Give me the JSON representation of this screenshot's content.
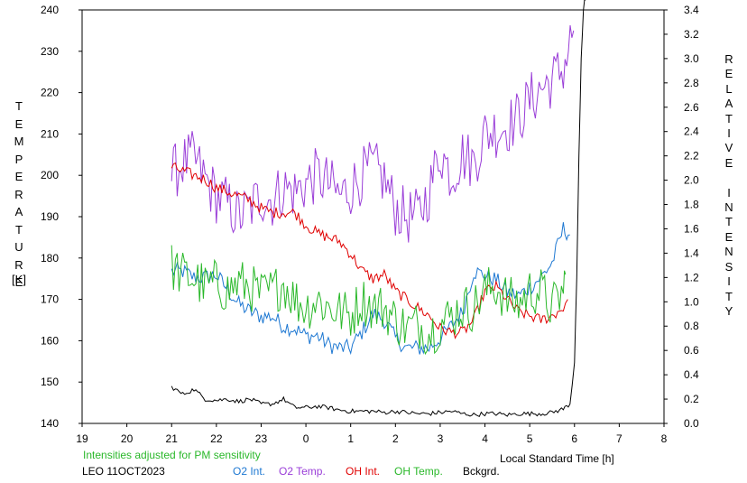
{
  "chart_data": {
    "type": "line",
    "left_axis_label_letters": [
      "T",
      "E",
      "M",
      "P",
      "E",
      "R",
      "A",
      "T",
      "U",
      "R",
      "E"
    ],
    "left_axis_unit": "[K]",
    "right_axis_label_letters": [
      "R",
      "E",
      "L",
      "A",
      "T",
      "I",
      "V",
      "E",
      " ",
      "I",
      "N",
      "T",
      "E",
      "N",
      "S",
      "I",
      "T",
      "Y"
    ],
    "xlabel": "Local Standard Time [h]",
    "x_ticks": [
      "19",
      "20",
      "21",
      "22",
      "23",
      "0",
      "1",
      "2",
      "3",
      "4",
      "5",
      "6",
      "7",
      "8"
    ],
    "xlim": [
      19,
      32
    ],
    "y_left_ticks": [
      "140",
      "150",
      "160",
      "170",
      "180",
      "190",
      "200",
      "210",
      "220",
      "230",
      "240"
    ],
    "ylim_left": [
      140,
      240
    ],
    "y_right_ticks": [
      "0.0",
      "0.2",
      "0.4",
      "0.6",
      "0.8",
      "1.0",
      "1.2",
      "1.4",
      "1.6",
      "1.8",
      "2.0",
      "2.2",
      "2.4",
      "2.6",
      "2.8",
      "3.0",
      "3.2",
      "3.4"
    ],
    "ylim_right": [
      0,
      3.4
    ],
    "grid": false,
    "note": "Intensities adjusted for PM sensitivity",
    "station_date": "LEO 11OCT2023",
    "legend_placement": "bottom",
    "series": [
      {
        "name": "O2 Int.",
        "color": "#1e78d2",
        "axis": "right",
        "x": [
          21.0,
          21.25,
          21.5,
          21.75,
          22.0,
          22.25,
          22.5,
          22.75,
          23.0,
          23.25,
          23.5,
          23.75,
          24.0,
          24.25,
          24.5,
          24.75,
          25.0,
          25.25,
          25.5,
          25.75,
          26.0,
          26.25,
          26.5,
          26.75,
          27.0,
          27.25,
          27.5,
          27.75,
          28.0,
          28.25,
          28.5,
          28.75,
          29.0,
          29.25,
          29.5,
          29.75,
          29.9
        ],
        "y": [
          1.25,
          1.25,
          1.2,
          1.2,
          1.22,
          1.1,
          0.98,
          0.92,
          0.88,
          0.88,
          0.8,
          0.78,
          0.72,
          0.72,
          0.65,
          0.62,
          0.62,
          0.75,
          0.9,
          0.85,
          0.7,
          0.62,
          0.62,
          0.62,
          0.7,
          0.8,
          0.92,
          1.25,
          1.22,
          1.18,
          1.08,
          1.05,
          1.12,
          1.2,
          1.32,
          1.6,
          1.55
        ]
      },
      {
        "name": "O2 Temp.",
        "color": "#9a3ed8",
        "axis": "left",
        "x": [
          21.0,
          21.25,
          21.5,
          21.75,
          22.0,
          22.25,
          22.5,
          22.75,
          23.0,
          23.25,
          23.5,
          23.75,
          24.0,
          24.25,
          24.5,
          24.75,
          25.0,
          25.25,
          25.5,
          25.75,
          26.0,
          26.25,
          26.5,
          26.75,
          27.0,
          27.25,
          27.5,
          27.75,
          28.0,
          28.25,
          28.5,
          28.75,
          29.0,
          29.25,
          29.5,
          29.75,
          29.98
        ],
        "y": [
          200,
          203,
          204,
          199,
          195,
          193,
          190,
          192,
          195,
          194,
          197,
          196,
          198,
          200,
          198,
          195,
          197,
          200,
          202,
          199,
          192,
          190,
          190,
          196,
          206,
          200,
          205,
          203,
          210,
          211,
          212,
          214,
          218,
          221,
          223,
          226,
          235
        ]
      },
      {
        "name": "OH Int.",
        "color": "#e00000",
        "axis": "left",
        "x": [
          21.0,
          21.25,
          21.5,
          21.75,
          22.0,
          22.25,
          22.5,
          22.75,
          23.0,
          23.25,
          23.5,
          23.75,
          24.0,
          24.25,
          24.5,
          24.75,
          25.0,
          25.25,
          25.5,
          25.75,
          26.0,
          26.25,
          26.5,
          26.75,
          27.0,
          27.25,
          27.5,
          27.75,
          28.0,
          28.25,
          28.5,
          28.75,
          29.0,
          29.25,
          29.5,
          29.75,
          29.85
        ],
        "y": [
          202,
          201,
          200,
          199,
          197,
          196,
          195,
          194,
          192,
          191,
          191,
          191,
          188,
          186,
          185,
          184,
          181,
          177,
          175,
          176,
          172,
          170,
          168,
          166,
          163,
          162,
          162,
          165,
          172,
          173,
          170,
          167,
          166,
          165,
          166,
          168,
          170
        ]
      },
      {
        "name": "OH Temp.",
        "color": "#2ab82a",
        "axis": "left",
        "x": [
          21.0,
          21.25,
          21.5,
          21.75,
          22.0,
          22.25,
          22.5,
          22.75,
          23.0,
          23.25,
          23.5,
          23.75,
          24.0,
          24.25,
          24.5,
          24.75,
          25.0,
          25.25,
          25.5,
          25.75,
          26.0,
          26.25,
          26.5,
          26.75,
          27.0,
          27.25,
          27.5,
          27.75,
          28.0,
          28.25,
          28.5,
          28.75,
          29.0,
          29.25,
          29.5,
          29.75,
          29.8
        ],
        "y": [
          178,
          176,
          175,
          173,
          174,
          172,
          174,
          173,
          171,
          172,
          174,
          170,
          168,
          170,
          168,
          167,
          166,
          170,
          168,
          168,
          165,
          163,
          164,
          162,
          164,
          166,
          168,
          168,
          172,
          173,
          170,
          169,
          172,
          172,
          168,
          172,
          176
        ]
      },
      {
        "name": "Bckgrd.",
        "color": "#000000",
        "axis": "right",
        "x": [
          21.0,
          21.25,
          21.5,
          21.75,
          22.0,
          22.25,
          22.5,
          22.75,
          23.0,
          23.25,
          23.5,
          23.75,
          24.0,
          24.25,
          24.5,
          24.75,
          25.0,
          25.25,
          25.5,
          25.75,
          26.0,
          26.25,
          26.5,
          26.75,
          27.0,
          27.25,
          27.5,
          27.75,
          28.0,
          28.25,
          28.5,
          28.75,
          29.0,
          29.25,
          29.5,
          29.75,
          29.9,
          30.0,
          30.05,
          30.1,
          30.15,
          30.2,
          30.25
        ],
        "y": [
          0.3,
          0.24,
          0.28,
          0.2,
          0.19,
          0.2,
          0.18,
          0.2,
          0.16,
          0.16,
          0.2,
          0.13,
          0.13,
          0.14,
          0.13,
          0.11,
          0.1,
          0.1,
          0.1,
          0.09,
          0.1,
          0.09,
          0.08,
          0.08,
          0.09,
          0.1,
          0.08,
          0.07,
          0.08,
          0.08,
          0.07,
          0.08,
          0.08,
          0.08,
          0.09,
          0.12,
          0.16,
          0.5,
          1.2,
          2.2,
          3.0,
          3.4,
          3.6
        ]
      }
    ]
  }
}
